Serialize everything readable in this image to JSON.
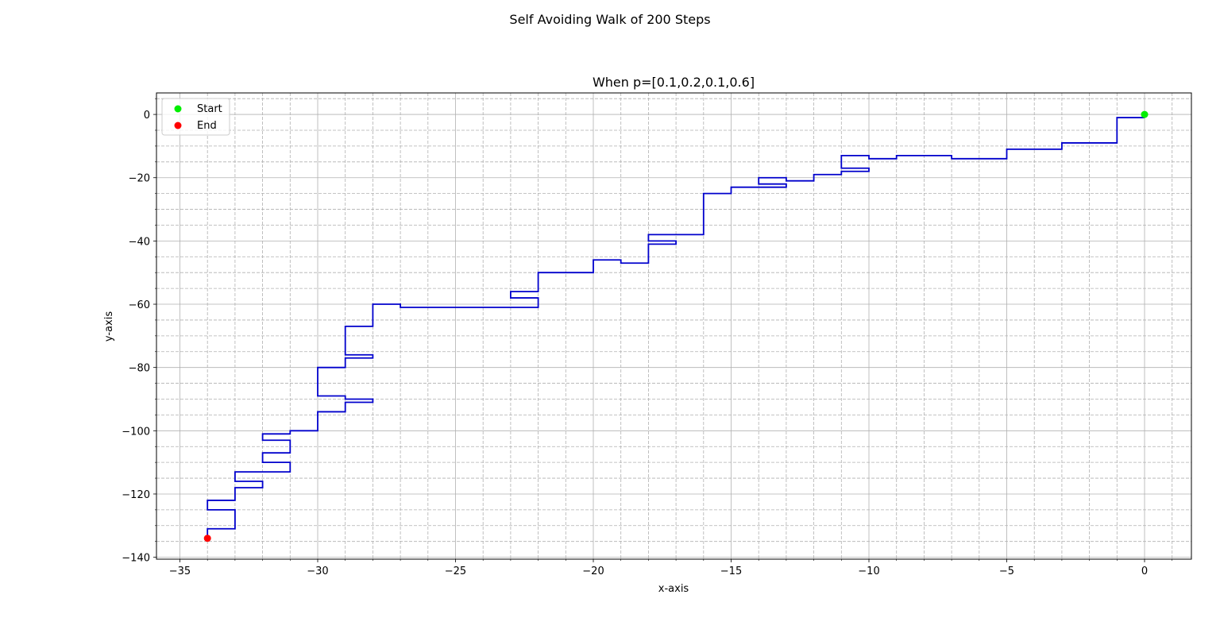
{
  "suptitle": "Self Avoiding Walk of 200 Steps",
  "chart_data": {
    "type": "line",
    "title": "When p=[0.1,0.2,0.1,0.6]",
    "xlabel": "x-axis",
    "ylabel": "y-axis",
    "xlim": [
      -35.85,
      1.7
    ],
    "ylim": [
      -140.6,
      6.8
    ],
    "xticks": [
      -35,
      -30,
      -25,
      -20,
      -15,
      -10,
      -5,
      0
    ],
    "xtick_labels": [
      "−35",
      "−30",
      "−25",
      "−20",
      "−15",
      "−10",
      "−5",
      "0"
    ],
    "yticks": [
      0,
      -20,
      -40,
      -60,
      -80,
      -100,
      -120,
      -140
    ],
    "ytick_labels": [
      "0",
      "−20",
      "−40",
      "−60",
      "−80",
      "−100",
      "−120",
      "−140"
    ],
    "grid": {
      "major": true,
      "minor": true,
      "minor_style": "dashed"
    },
    "legend": {
      "placement": "top-left",
      "entries": [
        {
          "label": "Start",
          "color": "#00ee00"
        },
        {
          "label": "End",
          "color": "#ff0000"
        }
      ]
    },
    "series": [
      {
        "style": "line",
        "color": "#0000cc",
        "x": [
          0,
          -1,
          -1,
          -3,
          -3,
          -5,
          -5,
          -7,
          -7,
          -9,
          -9,
          -10,
          -10,
          -11,
          -11,
          -10,
          -10,
          -11,
          -11,
          -12,
          -12,
          -13,
          -13,
          -14,
          -14,
          -13,
          -13,
          -15,
          -15,
          -16,
          -16,
          -18,
          -18,
          -17,
          -17,
          -18,
          -18,
          -19,
          -19,
          -20,
          -20,
          -22,
          -22,
          -23,
          -23,
          -22,
          -22,
          -27,
          -27,
          -28,
          -28,
          -29,
          -29,
          -28,
          -28,
          -29,
          -29,
          -30,
          -30,
          -29,
          -29,
          -28,
          -28,
          -29,
          -29,
          -30,
          -30,
          -31,
          -31,
          -32,
          -32,
          -31,
          -31,
          -32,
          -32,
          -31,
          -31,
          -33,
          -33,
          -32,
          -32,
          -33,
          -33,
          -34,
          -34,
          -33,
          -33,
          -34,
          -34
        ],
        "y": [
          -1,
          -1,
          -9,
          -9,
          -11,
          -11,
          -14,
          -14,
          -13,
          -13,
          -14,
          -14,
          -13,
          -13,
          -17,
          -17,
          -18,
          -18,
          -19,
          -19,
          -21,
          -21,
          -20,
          -20,
          -22,
          -22,
          -23,
          -23,
          -25,
          -25,
          -38,
          -38,
          -40,
          -40,
          -41,
          -41,
          -47,
          -47,
          -46,
          -46,
          -50,
          -50,
          -56,
          -56,
          -58,
          -58,
          -61,
          -61,
          -60,
          -60,
          -67,
          -67,
          -76,
          -76,
          -77,
          -77,
          -80,
          -80,
          -89,
          -89,
          -90,
          -90,
          -91,
          -91,
          -94,
          -94,
          -100,
          -100,
          -101,
          -101,
          -103,
          -103,
          -107,
          -107,
          -110,
          -110,
          -113,
          -113,
          -116,
          -116,
          -118,
          -118,
          -122,
          -122,
          -125,
          -125,
          -131,
          -131,
          -134
        ]
      },
      {
        "name": "Start",
        "style": "point",
        "color": "#00ee00",
        "x": [
          0
        ],
        "y": [
          0
        ]
      },
      {
        "name": "End",
        "style": "point",
        "color": "#ff0000",
        "x": [
          -34
        ],
        "y": [
          -134
        ]
      }
    ]
  }
}
